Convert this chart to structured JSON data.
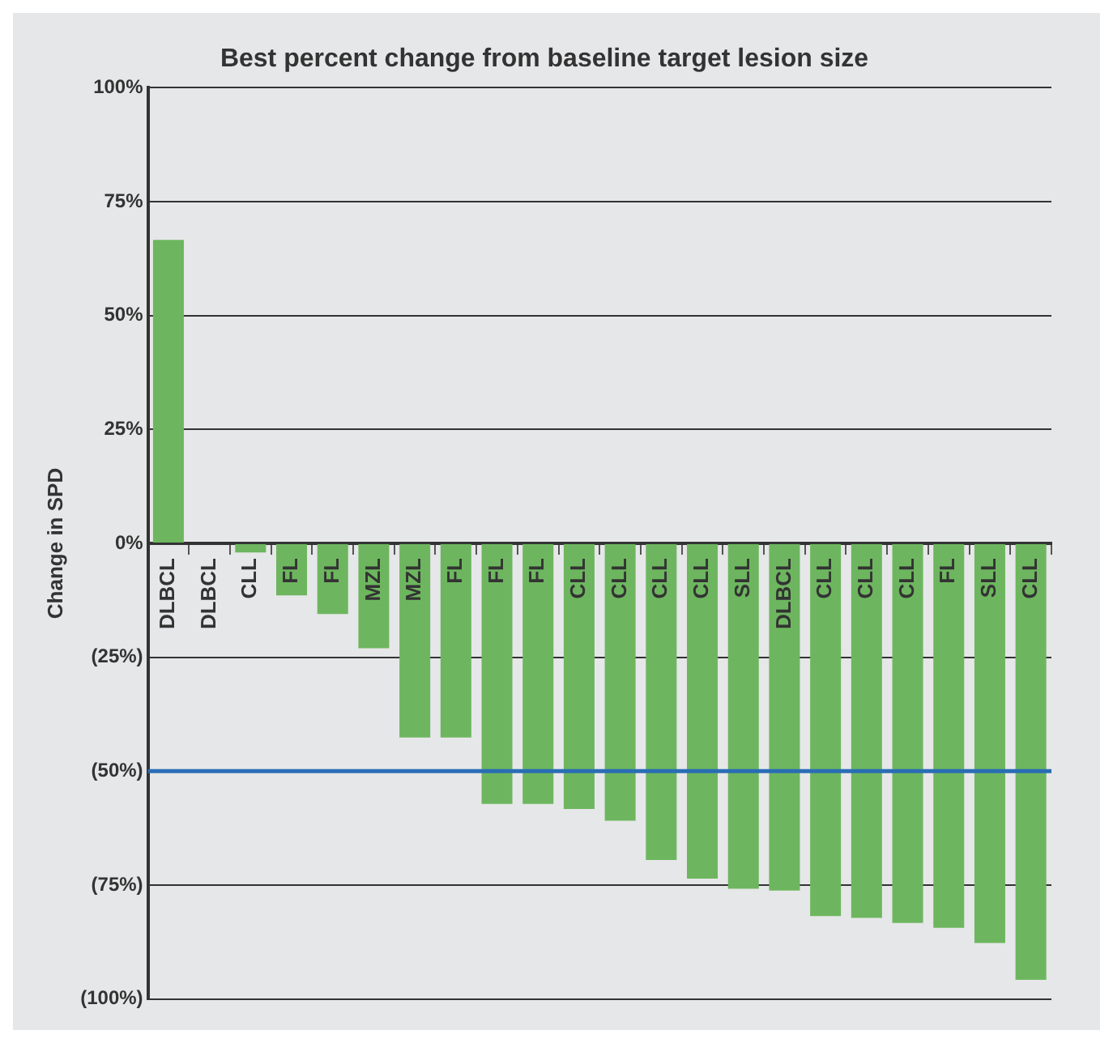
{
  "chart_data": {
    "type": "bar",
    "title": "Best percent change from baseline target lesion size",
    "ylabel": "Change in SPD",
    "categories": [
      "DLBCL",
      "DLBCL",
      "CLL",
      "FL",
      "FL",
      "MZL",
      "MZL",
      "FL",
      "FL",
      "FL",
      "CLL",
      "CLL",
      "CLL",
      "CLL",
      "SLL",
      "DLBCL",
      "CLL",
      "CLL",
      "CLL",
      "FL",
      "SLL",
      "CLL"
    ],
    "values": [
      66.6,
      0,
      -2,
      -11.4,
      -15.5,
      -23,
      -42.6,
      -42.6,
      -57.2,
      -57.2,
      -58.3,
      -60.9,
      -69.5,
      -73.6,
      -75.8,
      -76.2,
      -81.8,
      -82.2,
      -83.3,
      -84.4,
      -87.7,
      -95.8
    ],
    "color": "#6db65f",
    "ylim": [
      -100,
      100
    ],
    "yticks": [
      {
        "value": 100,
        "label": "100%"
      },
      {
        "value": 75,
        "label": "75%"
      },
      {
        "value": 50,
        "label": "50%"
      },
      {
        "value": 25,
        "label": "25%"
      },
      {
        "value": 0,
        "label": "0%"
      },
      {
        "value": -25,
        "label": "(25%)"
      },
      {
        "value": -50,
        "label": "(50%)"
      },
      {
        "value": -75,
        "label": "(75%)"
      },
      {
        "value": -100,
        "label": "(100%)"
      }
    ],
    "grid": "y",
    "ref_lines": [
      {
        "axis": "y",
        "value": -50,
        "color": "#2a6db5"
      }
    ]
  }
}
